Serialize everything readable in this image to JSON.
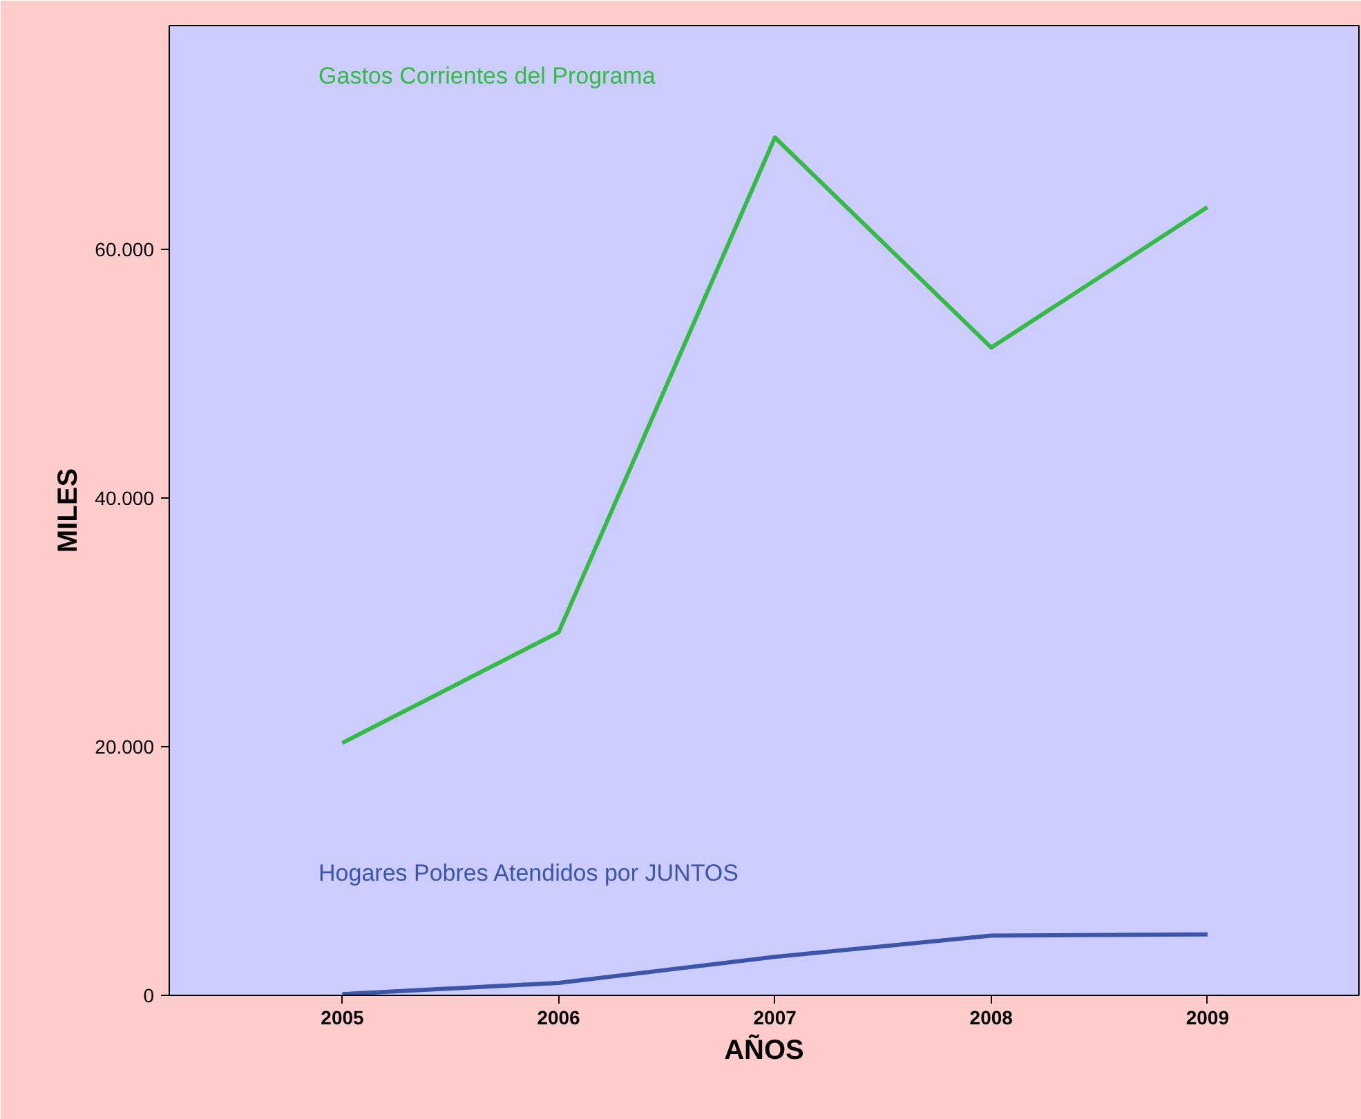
{
  "chart_data": {
    "type": "line",
    "xlabel": "AÑOS",
    "ylabel": "MILES",
    "x": [
      2005,
      2006,
      2007,
      2008,
      2009
    ],
    "series": [
      {
        "name": "Gastos Corrientes del Programa",
        "color": "#33bb44",
        "values": [
          20300,
          29200,
          69000,
          52100,
          63400
        ]
      },
      {
        "name": "Hogares Pobres Atendidos por JUNTOS",
        "color": "#3a55aa",
        "values": [
          100,
          1000,
          3100,
          4800,
          4900
        ]
      }
    ],
    "xlim": [
      2004.2,
      2009.7
    ],
    "ylim": [
      0,
      78000
    ],
    "xticks": [
      2005,
      2006,
      2007,
      2008,
      2009
    ],
    "yticks": [
      0,
      {
        "value": 20000,
        "label": "20.000"
      },
      {
        "value": 40000,
        "label": "40.000"
      },
      {
        "value": 60000,
        "label": "60.000"
      }
    ],
    "grid": false,
    "marker": "none",
    "line_style": "solid"
  }
}
